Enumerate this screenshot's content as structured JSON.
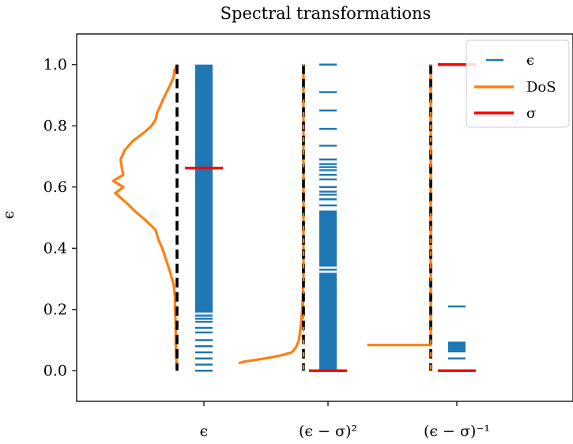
{
  "chart_data": {
    "type": "line",
    "title": "Spectral transformations",
    "ylabel": "ϵ",
    "xlabel": "",
    "ylim": [
      -0.1,
      1.1
    ],
    "yticks": [
      "0.0",
      "0.2",
      "0.4",
      "0.6",
      "0.8",
      "1.0"
    ],
    "yticks_values": [
      0,
      0.2,
      0.4,
      0.6,
      0.8,
      1.0
    ],
    "xticks": [
      "ϵ",
      "(ϵ − σ)²",
      "(ϵ − σ)⁻¹"
    ],
    "grid": false,
    "legend_position": "top-right",
    "legend": [
      {
        "label": "ϵ",
        "style": "short-dash",
        "color": "#1f77b4"
      },
      {
        "label": "DoS",
        "style": "line",
        "color": "#ff7f0e"
      },
      {
        "label": "σ",
        "style": "line",
        "color": "#ff0000"
      }
    ],
    "columns": [
      {
        "name": "ϵ",
        "eigenvalues_dense_range": [
          0.19,
          1.0
        ],
        "eigenvalues_sparse": [
          0.0,
          0.02,
          0.04,
          0.06,
          0.08,
          0.1,
          0.125,
          0.14,
          0.16,
          0.17,
          0.18
        ],
        "sigma": 0.662,
        "dos": [
          [
            1.0,
            0.0
          ],
          [
            0.98,
            0.04
          ],
          [
            0.96,
            0.05
          ],
          [
            0.93,
            0.11
          ],
          [
            0.89,
            0.2
          ],
          [
            0.84,
            0.3
          ],
          [
            0.82,
            0.32
          ],
          [
            0.8,
            0.38
          ],
          [
            0.78,
            0.48
          ],
          [
            0.75,
            0.66
          ],
          [
            0.72,
            0.78
          ],
          [
            0.69,
            0.84
          ],
          [
            0.66,
            0.82
          ],
          [
            0.64,
            0.8
          ],
          [
            0.62,
            0.95
          ],
          [
            0.6,
            0.8
          ],
          [
            0.58,
            0.92
          ],
          [
            0.55,
            0.76
          ],
          [
            0.52,
            0.62
          ],
          [
            0.49,
            0.46
          ],
          [
            0.46,
            0.32
          ],
          [
            0.43,
            0.28
          ],
          [
            0.4,
            0.22
          ],
          [
            0.36,
            0.16
          ],
          [
            0.32,
            0.1
          ],
          [
            0.28,
            0.05
          ],
          [
            0.24,
            0.03
          ],
          [
            0.2,
            0.03
          ],
          [
            0.15,
            0.02
          ],
          [
            0.1,
            0.02
          ],
          [
            0.05,
            0.015
          ],
          [
            0.0,
            0.0
          ]
        ]
      },
      {
        "name": "(ϵ − σ)²",
        "eigenvalues_dense_range": [
          0.34,
          0.52
        ],
        "eigenvalues_dense_range_2": [
          0.0,
          0.32
        ],
        "eigenvalues_sparse": [
          0.33,
          0.355,
          0.37,
          0.39,
          0.41,
          0.43,
          0.455,
          0.49,
          0.5,
          0.52,
          0.54,
          0.56,
          0.575,
          0.585,
          0.6,
          0.625,
          0.64,
          0.655,
          0.665,
          0.675,
          0.69,
          0.735,
          0.79,
          0.85,
          0.91,
          1.0
        ],
        "sigma": 0.0,
        "dos": [
          [
            1.0,
            0.0
          ],
          [
            0.3,
            0.0
          ],
          [
            0.25,
            0.01
          ],
          [
            0.2,
            0.02
          ],
          [
            0.15,
            0.04
          ],
          [
            0.1,
            0.07
          ],
          [
            0.075,
            0.12
          ],
          [
            0.06,
            0.18
          ],
          [
            0.05,
            0.35
          ],
          [
            0.04,
            0.6
          ],
          [
            0.03,
            0.9
          ],
          [
            0.025,
            1.0
          ]
        ]
      },
      {
        "name": "(ϵ − σ)⁻¹",
        "eigenvalues_dense_range": [
          0.06,
          0.095
        ],
        "eigenvalues_sparse": [
          0.0,
          0.04,
          0.21
        ],
        "sigma_values": [
          0.0,
          1.0
        ],
        "dos": [
          [
            1.0,
            0.0
          ],
          [
            0.084,
            0.0
          ],
          [
            0.084,
            0.98
          ]
        ]
      }
    ]
  }
}
